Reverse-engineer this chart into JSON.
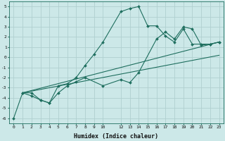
{
  "xlabel": "Humidex (Indice chaleur)",
  "xlim": [
    -0.5,
    23.5
  ],
  "ylim": [
    -6.5,
    5.5
  ],
  "xticks": [
    0,
    1,
    2,
    3,
    4,
    5,
    6,
    7,
    8,
    9,
    10,
    12,
    13,
    14,
    15,
    16,
    17,
    18,
    19,
    20,
    21,
    22,
    23
  ],
  "xtick_labels": [
    "0",
    "1",
    "2",
    "3",
    "4",
    "5",
    "6",
    "7",
    "8",
    "9",
    "10",
    "12",
    "13",
    "14",
    "15",
    "16",
    "17",
    "18",
    "19",
    "20",
    "21",
    "22",
    "23"
  ],
  "yticks": [
    5,
    4,
    3,
    2,
    1,
    0,
    -1,
    -2,
    -3,
    -4,
    -5,
    -6
  ],
  "bg_color": "#cce8e8",
  "grid_color": "#b0d0d0",
  "line_color": "#1e6e5e",
  "series": [
    {
      "x": [
        0,
        1,
        2,
        3,
        4,
        5,
        6,
        7,
        8,
        9,
        10,
        12,
        13,
        14,
        15,
        16,
        17,
        18,
        19,
        20,
        21,
        22,
        23
      ],
      "y": [
        -6.0,
        -3.5,
        -3.5,
        -4.2,
        -4.5,
        -2.8,
        -2.6,
        -2.0,
        -0.8,
        0.3,
        1.5,
        4.5,
        4.8,
        5.0,
        3.1,
        3.1,
        2.1,
        1.5,
        2.8,
        1.3,
        1.3,
        1.3,
        1.5
      ]
    },
    {
      "x": [
        1,
        2,
        3,
        4,
        5,
        6,
        7,
        8,
        10,
        12,
        13,
        14,
        16,
        17,
        18,
        19,
        20,
        21,
        22,
        23
      ],
      "y": [
        -3.5,
        -3.8,
        -4.2,
        -4.5,
        -3.5,
        -2.8,
        -2.4,
        -2.0,
        -2.8,
        -2.2,
        -2.5,
        -1.5,
        1.8,
        2.5,
        1.8,
        3.0,
        2.8,
        1.2,
        1.3,
        1.5
      ]
    },
    {
      "x": [
        1,
        23
      ],
      "y": [
        -3.5,
        1.5
      ]
    },
    {
      "x": [
        1,
        23
      ],
      "y": [
        -3.5,
        0.2
      ]
    }
  ]
}
